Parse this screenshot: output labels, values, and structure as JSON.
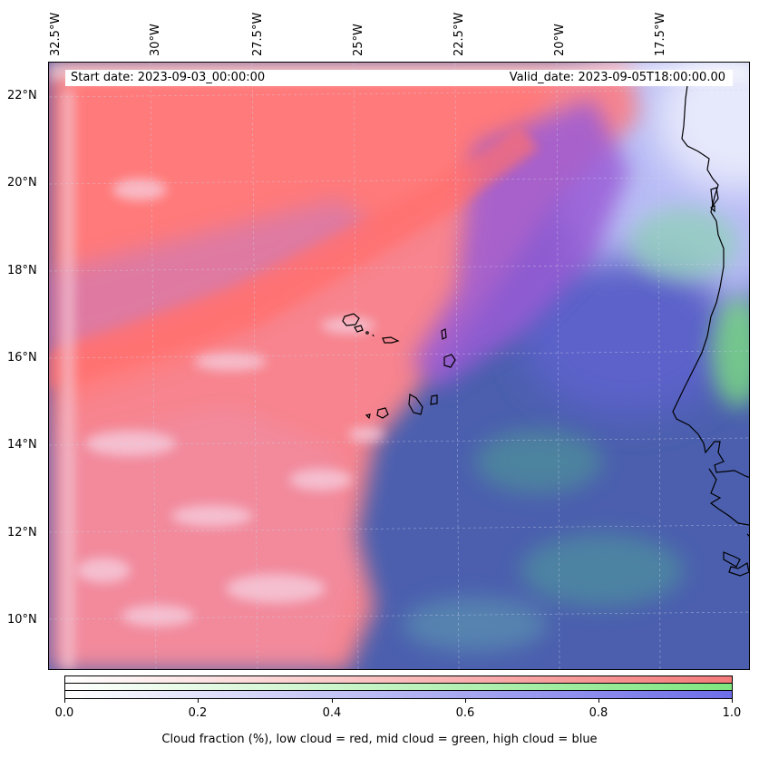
{
  "map": {
    "longitude_labels": [
      "32.5°W",
      "30°W",
      "27.5°W",
      "25°W",
      "22.5°W",
      "20°W",
      "17.5°W"
    ],
    "latitude_labels": [
      "22°N",
      "20°N",
      "18°N",
      "16°N",
      "14°N",
      "12°N",
      "10°N"
    ],
    "start_date": "Start date: 2023-09-03_00:00:00",
    "valid_date": "Valid_date: 2023-09-05T18:00:00.00",
    "low_cloud_color": "#ff7f7f",
    "mid_cloud_color": "#7fff7f",
    "high_cloud_color": "#7f7fff",
    "ocean_clear_color": "#4a5fb0",
    "coastline_color": "#000000"
  },
  "colorbar": {
    "tick_labels": [
      "0.0",
      "0.2",
      "0.4",
      "0.6",
      "0.8",
      "1.0"
    ],
    "label": "Cloud fraction (%), low cloud = red, mid cloud = green, high cloud = blue",
    "range": [
      0.0,
      1.0
    ]
  }
}
